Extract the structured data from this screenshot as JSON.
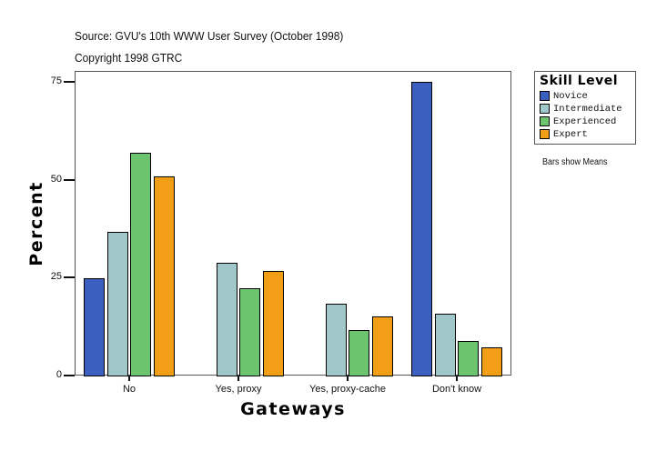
{
  "header": {
    "source": "Source: GVU's 10th WWW User Survey (October 1998)",
    "copyright": "Copyright 1998 GTRC"
  },
  "note": "Bars show Means",
  "chart_data": {
    "type": "bar",
    "title": "",
    "xlabel": "Gateways",
    "ylabel": "Percent",
    "ylim": [
      0,
      75
    ],
    "yticks": [
      0,
      25,
      50,
      75
    ],
    "grid": false,
    "legend_title": "Skill Level",
    "legend_position": "right",
    "categories": [
      "No",
      "Yes, proxy",
      "Yes, proxy-cache",
      "Don't know"
    ],
    "series": [
      {
        "name": "Novice",
        "color": "#3a5fbf",
        "values": [
          24.8,
          0,
          0,
          74.9
        ]
      },
      {
        "name": "Intermediate",
        "color": "#a0c8cb",
        "values": [
          36.6,
          28.7,
          18.3,
          15.7
        ]
      },
      {
        "name": "Experienced",
        "color": "#6cc56e",
        "values": [
          56.9,
          22.4,
          11.5,
          8.8
        ]
      },
      {
        "name": "Expert",
        "color": "#f29e16",
        "values": [
          50.8,
          26.6,
          15.0,
          7.1
        ]
      }
    ]
  }
}
